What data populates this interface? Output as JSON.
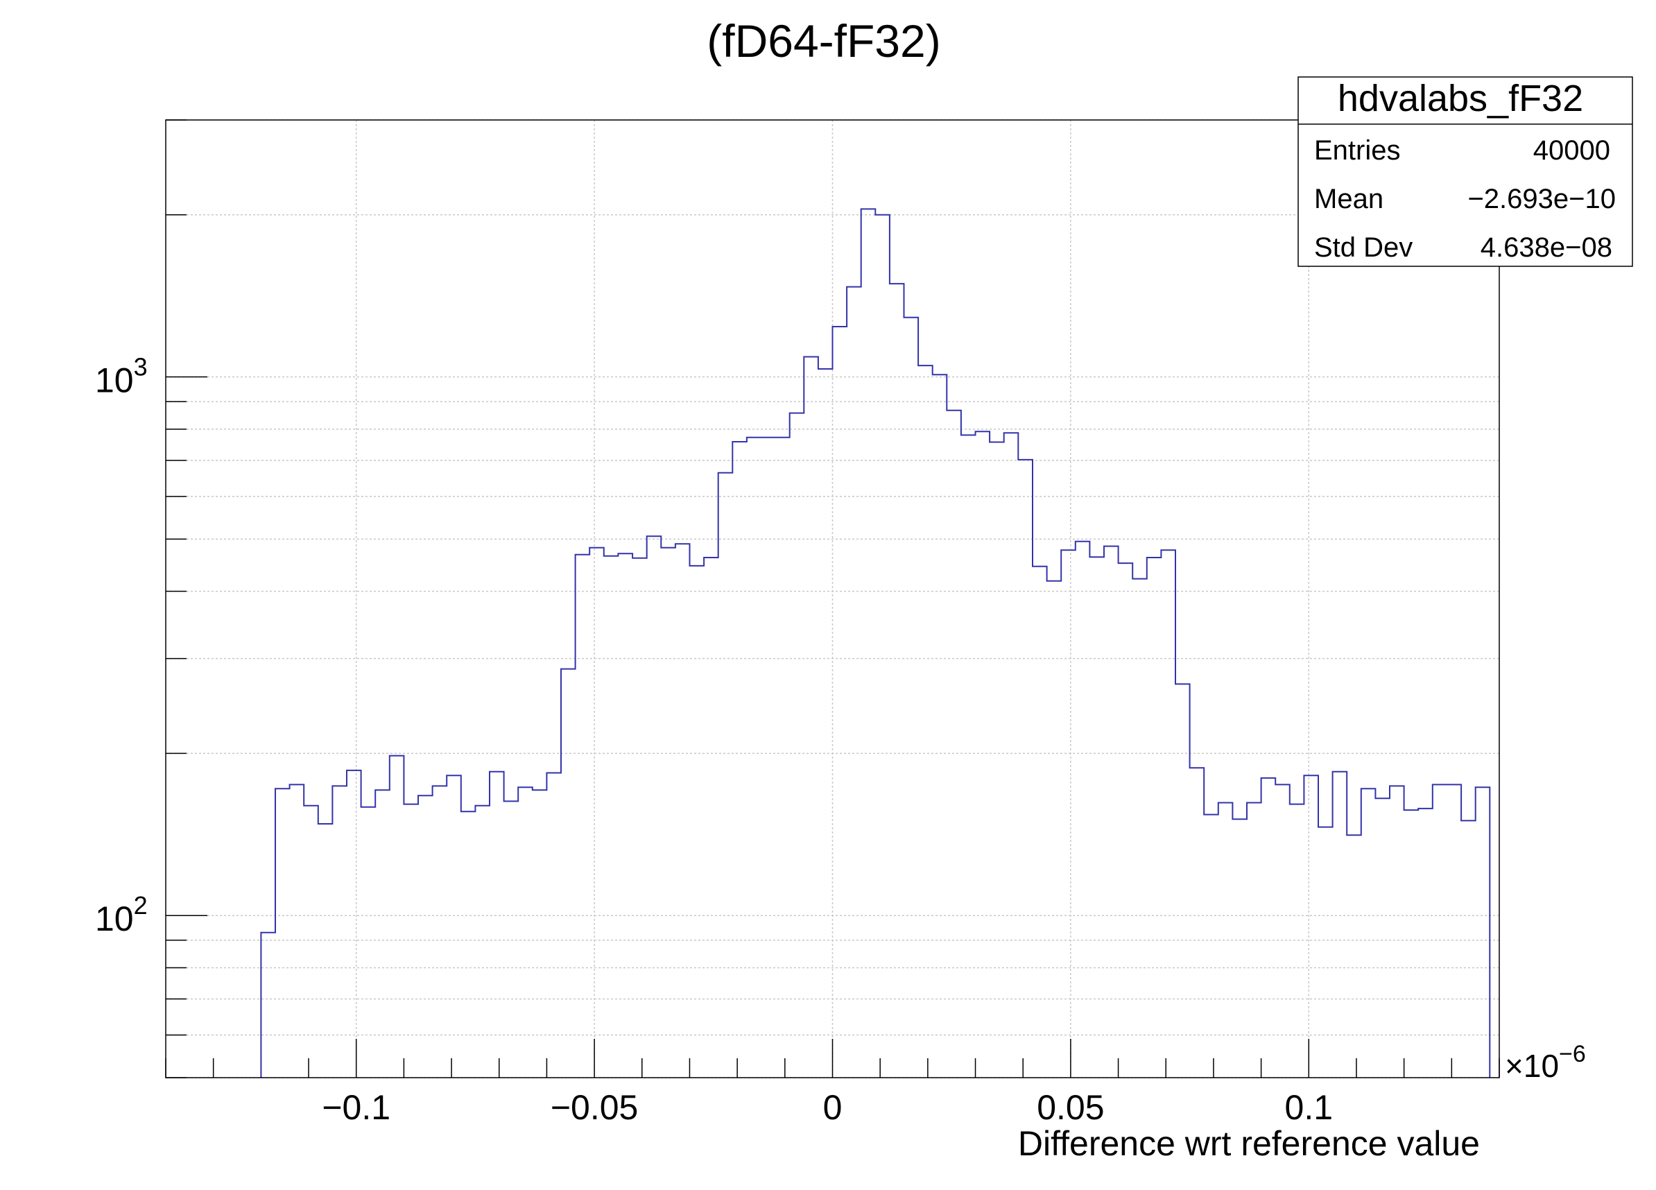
{
  "chart_data": {
    "type": "histogram",
    "title": "(fD64-fF32)",
    "xlabel": "Difference wrt reference value",
    "ylabel": "",
    "x_exponent": "×10",
    "x_exponent_power": "−6",
    "x_range": [
      -0.14,
      0.14
    ],
    "y_scale": "log",
    "y_range": [
      50,
      3000
    ],
    "grid": true,
    "x_ticks": [
      {
        "value": -0.1,
        "label": "−0.1"
      },
      {
        "value": -0.05,
        "label": "−0.05"
      },
      {
        "value": 0,
        "label": "0"
      },
      {
        "value": 0.05,
        "label": "0.05"
      },
      {
        "value": 0.1,
        "label": "0.1"
      }
    ],
    "y_ticks": [
      {
        "value": 100,
        "base": "10",
        "exp": "2"
      },
      {
        "value": 1000,
        "base": "10",
        "exp": "3"
      }
    ],
    "bin_edges_start": -0.12,
    "bin_width": 0.003,
    "counts": [
      93,
      172,
      175,
      160,
      148,
      174,
      186,
      159,
      171,
      198,
      161,
      167,
      174,
      182,
      156,
      160,
      185,
      163,
      173,
      171,
      184,
      287,
      468,
      482,
      465,
      470,
      461,
      506,
      482,
      490,
      446,
      462,
      664,
      758,
      772,
      772,
      772,
      857,
      1090,
      1035,
      1240,
      1470,
      2050,
      2000,
      1490,
      1290,
      1050,
      1010,
      867,
      780,
      792,
      757,
      787,
      702,
      445,
      418,
      477,
      495,
      463,
      485,
      451,
      422,
      462,
      477,
      269,
      188,
      154,
      162,
      151,
      162,
      180,
      175,
      161,
      182,
      146,
      185,
      141,
      172,
      165,
      174,
      157,
      158,
      175,
      175,
      150,
      173
    ],
    "stats": {
      "name": "hdvalabs_fF32",
      "rows": [
        {
          "label": "Entries",
          "value": "40000"
        },
        {
          "label": "Mean",
          "value": "−2.693e−10"
        },
        {
          "label": "Std Dev",
          "value": "4.638e−08"
        }
      ]
    },
    "colors": {
      "line": "#3333aa",
      "grid": "#c8c8c8",
      "axis": "#000000"
    }
  }
}
